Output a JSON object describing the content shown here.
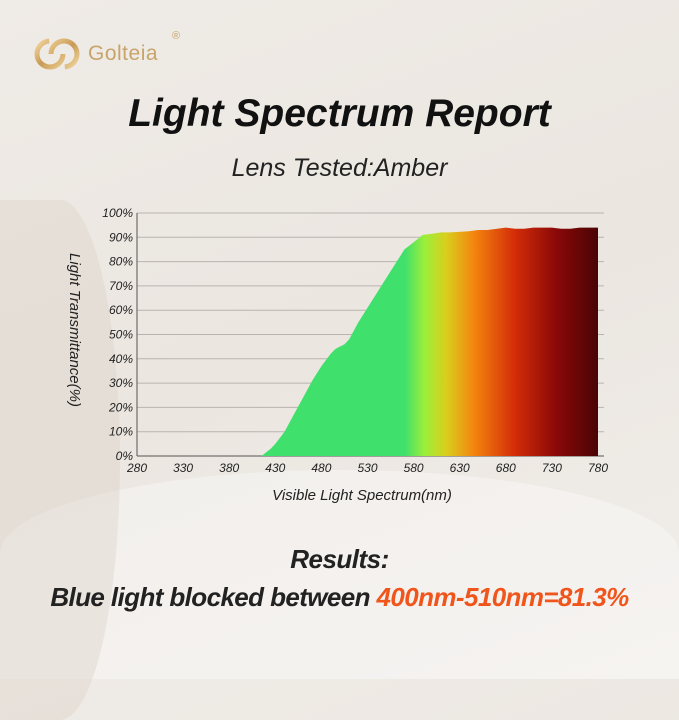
{
  "brand": {
    "name": "Golteia",
    "registered": "®",
    "color": "#c9a46a"
  },
  "header": {
    "title": "Light Spectrum Report",
    "subtitle": "Lens Tested:Amber"
  },
  "results": {
    "heading": "Results:",
    "prefix": "Blue light blocked between ",
    "highlight": "400nm-510nm=81.3%",
    "highlight_color": "#f0561c"
  },
  "chart_data": {
    "type": "area",
    "title": "",
    "xlabel": "Visible Light Spectrum(nm)",
    "ylabel": "Light Transmittance(%)",
    "xlim": [
      280,
      780
    ],
    "ylim": [
      0,
      100
    ],
    "xticks": [
      "280",
      "330",
      "380",
      "430",
      "480",
      "530",
      "580",
      "630",
      "680",
      "730",
      "780"
    ],
    "yticks": [
      "0%",
      "10%",
      "20%",
      "30%",
      "40%",
      "50%",
      "60%",
      "70%",
      "80%",
      "90%",
      "100%"
    ],
    "grid": "horizontal",
    "x": [
      415,
      425,
      430,
      440,
      450,
      460,
      470,
      480,
      490,
      495,
      500,
      505,
      510,
      520,
      530,
      540,
      550,
      560,
      570,
      580,
      590,
      600,
      610,
      620,
      640,
      650,
      660,
      680,
      690,
      700,
      710,
      720,
      730,
      740,
      750,
      760,
      770,
      780
    ],
    "y": [
      0,
      3,
      5,
      10,
      17,
      24,
      31,
      37,
      42,
      44,
      45,
      46,
      48,
      55,
      61,
      67,
      73,
      79,
      85,
      88,
      91,
      91.5,
      92,
      92,
      92.5,
      93,
      93,
      94,
      93.5,
      93.5,
      94,
      94,
      94,
      93.5,
      93.5,
      94,
      94,
      94
    ],
    "fill_gradient": [
      {
        "nm": 570,
        "color": "#3fe06c"
      },
      {
        "nm": 592,
        "color": "#9bef3a"
      },
      {
        "nm": 615,
        "color": "#d9cf1c"
      },
      {
        "nm": 645,
        "color": "#f4860f"
      },
      {
        "nm": 690,
        "color": "#d32c08"
      },
      {
        "nm": 735,
        "color": "#8a0808"
      },
      {
        "nm": 780,
        "color": "#4a0405"
      }
    ]
  }
}
